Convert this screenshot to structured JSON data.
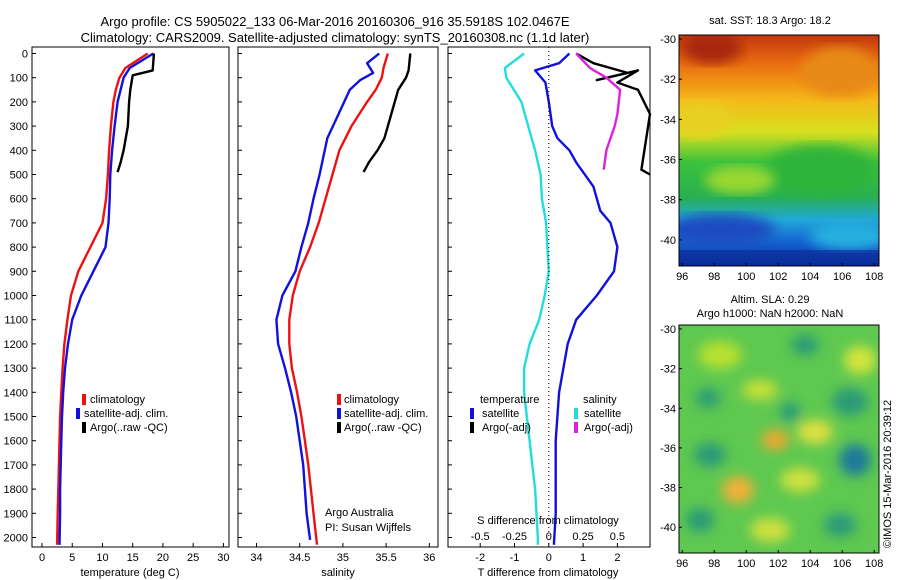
{
  "header": {
    "title_line1": "Argo profile: CS 5905022_133 06-Mar-2016 20160306_916 35.5918S 102.0467E",
    "title_line2": "Climatology: CARS2009. Satellite-adjusted climatology: synTS_20160308.nc (1.1d later)"
  },
  "panels": {
    "temperature": {
      "xlabel": "temperature (deg C)",
      "legend": [
        "climatology",
        "satellite-adj. clim.",
        "Argo(..raw -QC)"
      ]
    },
    "salinity": {
      "xlabel": "salinity",
      "legend": [
        "climatology",
        "satellite-adj. clim.",
        "Argo(..raw -QC)"
      ],
      "credit_line1": "Argo Australia",
      "credit_line2": "PI: Susan Wijffels"
    },
    "difference": {
      "xlabel": "T difference from climatology",
      "top_label": "S difference from climatology",
      "legend_head_t": "temperature",
      "legend_head_s": "salinity",
      "legend_t": [
        "satellite",
        "Argo(-adj)"
      ],
      "legend_s": [
        "satellite",
        "Argo(-adj)"
      ]
    },
    "sst_map": {
      "title": "sat. SST: 18.3 Argo: 18.2"
    },
    "sla_map": {
      "title_line1": "Altim. SLA: 0.29",
      "title_line2": "Argo h1000: NaN h2000: NaN"
    },
    "side_stamp": "©IMOS 15-Mar-2016 20:39:12"
  },
  "colors": {
    "climatology": "#ee1111",
    "satellite": "#1111dd",
    "argo": "#000000",
    "s_satellite": "#22dddd",
    "s_argo": "#dd22dd"
  },
  "chart_data": [
    {
      "type": "line",
      "name": "temperature-profile",
      "xlabel": "temperature (deg C)",
      "ylabel": "",
      "xlim": [
        -2,
        32
      ],
      "ylim": [
        2050,
        0
      ],
      "xticks": [
        0,
        5,
        10,
        15,
        20,
        25,
        30
      ],
      "yticks": [
        0,
        100,
        200,
        300,
        400,
        500,
        600,
        700,
        800,
        900,
        1000,
        1100,
        1200,
        1300,
        1400,
        1500,
        1600,
        1700,
        1800,
        1900,
        2000
      ],
      "legend_position": "bottom-right",
      "series": [
        {
          "name": "climatology",
          "color": "#ee1111",
          "x": [
            17.5,
            13.8,
            12.8,
            12.2,
            11.8,
            11.4,
            11.1,
            10.9,
            10.6,
            10.0,
            8.0,
            6.0,
            4.8,
            4.2,
            3.7,
            3.4,
            3.2,
            3.0,
            2.9,
            2.8,
            2.7,
            2.6,
            2.5
          ],
          "y": [
            0,
            60,
            100,
            150,
            200,
            300,
            400,
            500,
            600,
            700,
            800,
            900,
            1000,
            1100,
            1200,
            1300,
            1400,
            1500,
            1600,
            1700,
            1800,
            1900,
            2030
          ]
        },
        {
          "name": "satellite-adj. clim.",
          "color": "#1111dd",
          "x": [
            18.4,
            14.5,
            13.5,
            13.0,
            12.5,
            12.0,
            11.6,
            11.3,
            11.2,
            11.0,
            10.5,
            8.5,
            6.5,
            5.0,
            4.3,
            3.8,
            3.5,
            3.3,
            3.2,
            3.1,
            3.0,
            3.0,
            2.9
          ],
          "y": [
            0,
            60,
            100,
            150,
            200,
            300,
            400,
            500,
            600,
            700,
            800,
            900,
            1000,
            1100,
            1200,
            1300,
            1400,
            1500,
            1600,
            1700,
            1800,
            1900,
            2030
          ]
        },
        {
          "name": "Argo(..raw -QC)",
          "color": "#000000",
          "x": [
            18.5,
            18.3,
            15.0,
            14.6,
            14.4,
            14.2,
            13.5,
            13.0,
            12.5
          ],
          "y": [
            0,
            70,
            90,
            150,
            200,
            300,
            400,
            450,
            490
          ]
        }
      ]
    },
    {
      "type": "line",
      "name": "salinity-profile",
      "xlabel": "salinity",
      "ylabel": "",
      "xlim": [
        33.8,
        36.1
      ],
      "ylim": [
        2050,
        0
      ],
      "xticks": [
        34,
        34.5,
        35,
        35.5,
        36
      ],
      "legend_position": "bottom-right",
      "series": [
        {
          "name": "climatology",
          "color": "#ee1111",
          "x": [
            35.52,
            35.47,
            35.45,
            35.38,
            35.28,
            35.1,
            34.96,
            34.88,
            34.8,
            34.72,
            34.62,
            34.5,
            34.42,
            34.38,
            34.38,
            34.41,
            34.47,
            34.52,
            34.56,
            34.6,
            34.63,
            34.66,
            34.7
          ],
          "y": [
            0,
            60,
            100,
            150,
            200,
            300,
            400,
            500,
            600,
            700,
            800,
            900,
            1000,
            1100,
            1200,
            1300,
            1400,
            1500,
            1600,
            1700,
            1800,
            1900,
            2030
          ]
        },
        {
          "name": "satellite-adj. clim.",
          "color": "#1111dd",
          "x": [
            35.42,
            35.28,
            35.35,
            35.2,
            35.08,
            34.95,
            34.82,
            34.73,
            34.66,
            34.6,
            34.52,
            34.45,
            34.3,
            34.23,
            34.25,
            34.33,
            34.4,
            34.46,
            34.5,
            34.54,
            34.56,
            34.58,
            34.62
          ],
          "y": [
            0,
            40,
            80,
            110,
            150,
            250,
            350,
            500,
            600,
            700,
            800,
            900,
            1000,
            1100,
            1200,
            1300,
            1400,
            1500,
            1600,
            1700,
            1800,
            1900,
            2010
          ]
        },
        {
          "name": "Argo(..raw -QC)",
          "color": "#000000",
          "x": [
            35.78,
            35.76,
            35.73,
            35.64,
            35.56,
            35.48,
            35.4,
            35.3,
            35.24
          ],
          "y": [
            0,
            70,
            100,
            150,
            250,
            350,
            400,
            450,
            490
          ]
        }
      ]
    },
    {
      "type": "line",
      "name": "difference-profile",
      "xlabel": "T difference from climatology",
      "top_xlabel": "S difference from climatology",
      "xlim": [
        -3,
        3
      ],
      "xticks": [
        -2,
        -1,
        0,
        1,
        2
      ],
      "top_xticks": [
        -0.5,
        -0.25,
        0,
        0.25,
        0.5
      ],
      "top_xlim": [
        -0.75,
        0.75
      ],
      "ylim": [
        2050,
        0
      ],
      "legend_position": "bottom-right",
      "series": [
        {
          "name": "temperature satellite",
          "color": "#1111dd",
          "x": [
            0.6,
            0.3,
            -0.4,
            -0.1,
            0.0,
            0.1,
            0.25,
            0.6,
            0.8,
            1.3,
            1.5,
            1.8,
            2.0,
            1.9,
            1.4,
            0.8,
            0.55,
            0.3,
            0.25,
            0.2,
            0.2,
            0.2,
            0.15
          ],
          "y": [
            0,
            40,
            70,
            120,
            200,
            300,
            350,
            400,
            450,
            550,
            650,
            700,
            800,
            900,
            1000,
            1100,
            1200,
            1400,
            1500,
            1600,
            1700,
            1900,
            2030
          ]
        },
        {
          "name": "salinity satellite",
          "color": "#22dddd",
          "x": [
            -0.18,
            -0.32,
            -0.31,
            -0.2,
            -0.15,
            -0.1,
            -0.06,
            -0.05,
            -0.02,
            -0.01,
            0.0,
            -0.03,
            -0.07,
            -0.14,
            -0.18,
            -0.18,
            -0.16,
            -0.14,
            -0.12,
            -0.1,
            -0.09,
            -0.08,
            -0.08
          ],
          "y": [
            0,
            60,
            100,
            200,
            300,
            400,
            500,
            600,
            700,
            800,
            900,
            1000,
            1100,
            1200,
            1300,
            1400,
            1500,
            1600,
            1700,
            1800,
            1900,
            2000,
            2030
          ]
        },
        {
          "name": "temperature Argo(-adj)",
          "color": "#000000",
          "x": [
            0.8,
            1.3,
            2.3,
            1.4,
            2.6,
            2.0,
            2.6,
            3.0,
            2.7,
            3.0
          ],
          "y": [
            0,
            40,
            80,
            110,
            70,
            120,
            150,
            250,
            480,
            500
          ]
        },
        {
          "name": "salinity Argo(-adj)",
          "color": "#dd22dd",
          "x": [
            0.2,
            0.3,
            0.42,
            0.52,
            0.5,
            0.48,
            0.45,
            0.42,
            0.4
          ],
          "y": [
            0,
            60,
            100,
            150,
            250,
            300,
            350,
            400,
            480
          ]
        }
      ]
    },
    {
      "type": "heatmap",
      "name": "sst-map",
      "title": "sat. SST: 18.3 Argo: 18.2",
      "xlim": [
        95.8,
        108.3
      ],
      "ylim": [
        -41.3,
        -29.8
      ],
      "xticks": [
        96,
        98,
        100,
        102,
        104,
        106,
        108
      ],
      "yticks": [
        -30,
        -32,
        -34,
        -36,
        -38,
        -40
      ]
    },
    {
      "type": "heatmap",
      "name": "sla-map",
      "title": "Altim. SLA: 0.29",
      "subtitle": "Argo h1000: NaN h2000: NaN",
      "xlim": [
        95.8,
        108.3
      ],
      "ylim": [
        -41.3,
        -29.8
      ],
      "xticks": [
        96,
        98,
        100,
        102,
        104,
        106,
        108
      ],
      "yticks": [
        -30,
        -32,
        -34,
        -36,
        -38,
        -40
      ]
    }
  ]
}
